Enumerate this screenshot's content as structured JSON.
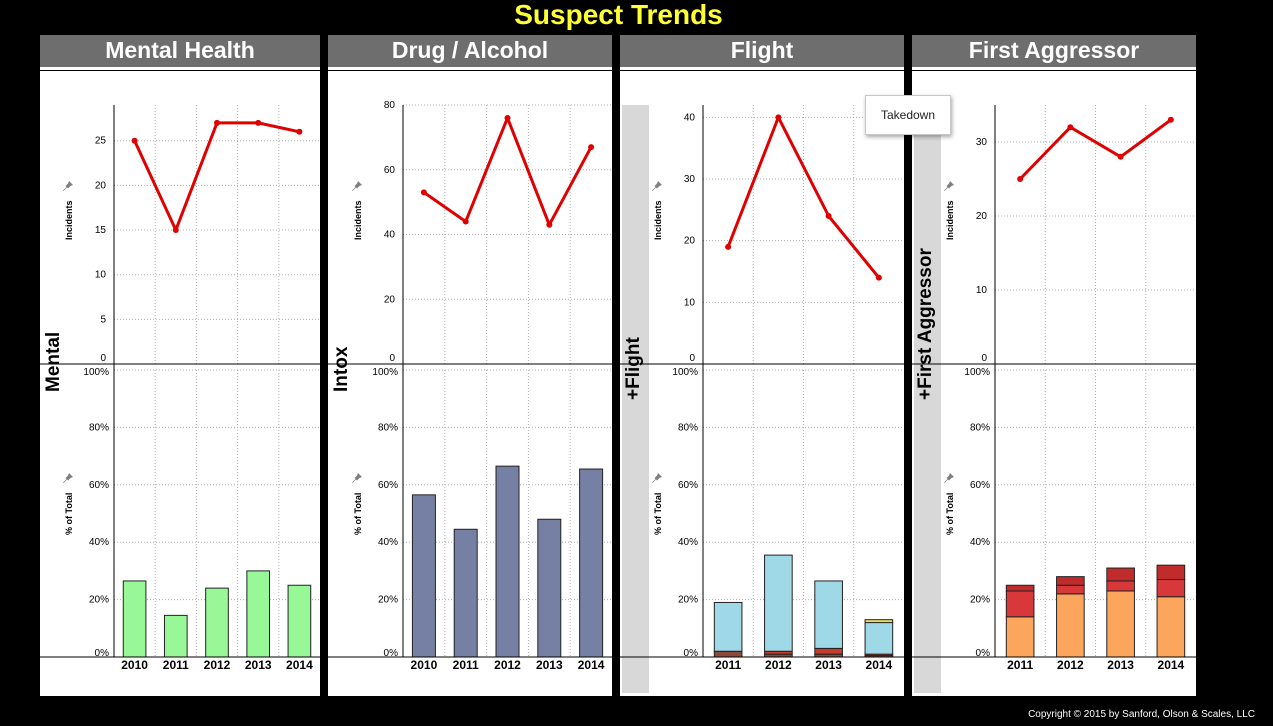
{
  "title": "Suspect Trends",
  "copyright": "Copyright © 2015 by Sanford, Olson & Scales, LLC",
  "tooltip": "Takedown",
  "y_label_top": "Incidents",
  "y_label_bottom": "% of Total",
  "colors": {
    "line": "#e00000",
    "mental_bar": "#98f898",
    "drug_bar": "#7680a4",
    "flight_light_blue": "#9fd8e6",
    "flight_brown": "#8b4a3c",
    "flight_red": "#c83c2c",
    "flight_yellow": "#f0e060",
    "aggressor_orange": "#fba65c",
    "aggressor_red": "#d8383a",
    "aggressor_dark_red": "#c02c2c"
  },
  "panels": [
    {
      "header": "Mental Health",
      "side_label": "Mental",
      "side_band": false
    },
    {
      "header": "Drug / Alcohol",
      "side_label": "Intox",
      "side_band": false
    },
    {
      "header": "Flight",
      "side_label": "+Flight",
      "side_band": true
    },
    {
      "header": "First Aggressor",
      "side_label": "+First Aggressor",
      "side_band": true
    }
  ],
  "chart_data": [
    {
      "type": "line",
      "panel": "Mental Health",
      "x": [
        "2010",
        "2011",
        "2012",
        "2013",
        "2014"
      ],
      "values": [
        25,
        15,
        27,
        27,
        26
      ],
      "ylabel": "Incidents",
      "yticks": [
        "0",
        "5",
        "10",
        "15",
        "20",
        "25"
      ],
      "ylim": [
        0,
        29
      ]
    },
    {
      "type": "bar",
      "panel": "Mental Health",
      "categories": [
        "2010",
        "2011",
        "2012",
        "2013",
        "2014"
      ],
      "series": [
        {
          "values": [
            26.5,
            14.5,
            24,
            30,
            25
          ]
        }
      ],
      "ylabel": "% of Total",
      "yticks": [
        "0%",
        "20%",
        "40%",
        "60%",
        "80%",
        "100%"
      ],
      "ylim": [
        0,
        100
      ]
    },
    {
      "type": "line",
      "panel": "Drug / Alcohol",
      "x": [
        "2010",
        "2011",
        "2012",
        "2013",
        "2014"
      ],
      "values": [
        53,
        44,
        76,
        43,
        67
      ],
      "ylabel": "Incidents",
      "yticks": [
        "0",
        "20",
        "40",
        "60",
        "80"
      ],
      "ylim": [
        0,
        80
      ]
    },
    {
      "type": "bar",
      "panel": "Drug / Alcohol",
      "categories": [
        "2010",
        "2011",
        "2012",
        "2013",
        "2014"
      ],
      "series": [
        {
          "values": [
            56.5,
            44.5,
            66.5,
            48,
            65.5
          ]
        }
      ],
      "ylabel": "% of Total",
      "yticks": [
        "0%",
        "20%",
        "40%",
        "60%",
        "80%",
        "100%"
      ],
      "ylim": [
        0,
        100
      ]
    },
    {
      "type": "line",
      "panel": "Flight",
      "x": [
        "2011",
        "2012",
        "2013",
        "2014"
      ],
      "values": [
        19,
        40,
        24,
        14
      ],
      "ylabel": "Incidents",
      "yticks": [
        "0",
        "10",
        "20",
        "30",
        "40"
      ],
      "ylim": [
        0,
        42
      ]
    },
    {
      "type": "bar",
      "panel": "Flight",
      "categories": [
        "2011",
        "2012",
        "2013",
        "2014"
      ],
      "series": [
        {
          "values": [
            2,
            1,
            1,
            0.5
          ]
        },
        {
          "values": [
            0,
            1,
            2,
            0.5
          ]
        },
        {
          "values": [
            17,
            33.5,
            23.5,
            11
          ]
        },
        {
          "values": [
            0,
            0,
            0,
            1
          ]
        }
      ],
      "stacked": true,
      "ylabel": "% of Total",
      "yticks": [
        "0%",
        "20%",
        "40%",
        "60%",
        "80%",
        "100%"
      ],
      "ylim": [
        0,
        100
      ]
    },
    {
      "type": "line",
      "panel": "First Aggressor",
      "x": [
        "2011",
        "2012",
        "2013",
        "2014"
      ],
      "values": [
        25,
        32,
        28,
        33
      ],
      "ylabel": "Incidents",
      "yticks": [
        "0",
        "10",
        "20",
        "30"
      ],
      "ylim": [
        0,
        35
      ]
    },
    {
      "type": "bar",
      "panel": "First Aggressor",
      "categories": [
        "2011",
        "2012",
        "2013",
        "2014"
      ],
      "series": [
        {
          "values": [
            14,
            22,
            23,
            21
          ]
        },
        {
          "values": [
            9,
            3,
            3.5,
            6
          ]
        },
        {
          "values": [
            2,
            3,
            4.5,
            5
          ]
        }
      ],
      "stacked": true,
      "ylabel": "% of Total",
      "yticks": [
        "0%",
        "20%",
        "40%",
        "60%",
        "80%",
        "100%"
      ],
      "ylim": [
        0,
        100
      ]
    }
  ]
}
